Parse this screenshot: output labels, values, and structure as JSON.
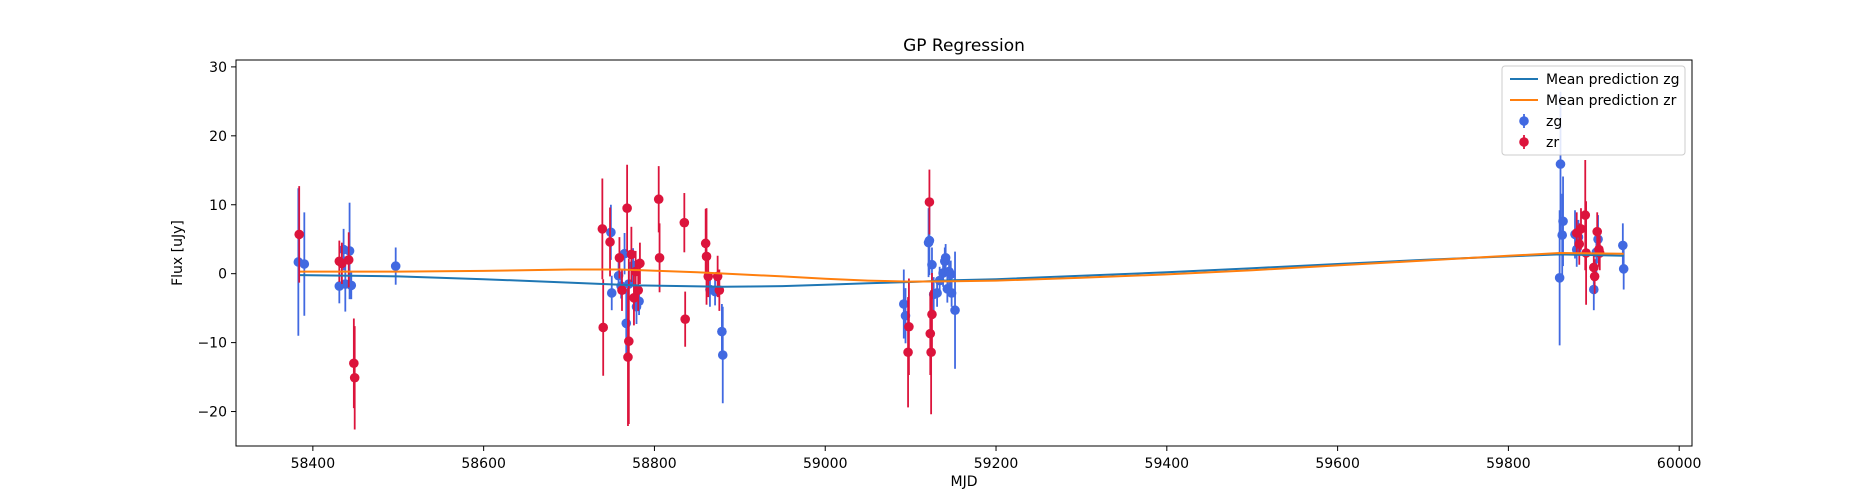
{
  "chart_data": {
    "type": "scatter",
    "title": "GP Regression",
    "xlabel": "MJD",
    "ylabel": "Flux [uJy]",
    "xlim": [
      58310,
      60015
    ],
    "ylim": [
      -25,
      31
    ],
    "x_ticks": [
      58400,
      58600,
      58800,
      59000,
      59200,
      59400,
      59600,
      59800,
      60000
    ],
    "y_ticks": [
      -20,
      -10,
      0,
      10,
      20,
      30
    ],
    "grid": false,
    "legend_position": "top-right",
    "lines": [
      {
        "name": "Mean prediction zg",
        "color": "#1f77b4",
        "x": [
          58385,
          58500,
          58600,
          58700,
          58780,
          58880,
          58950,
          59000,
          59050,
          59100,
          59150,
          59200,
          59300,
          59400,
          59500,
          59600,
          59700,
          59800,
          59860,
          59935
        ],
        "y": [
          -0.2,
          -0.4,
          -0.8,
          -1.3,
          -1.7,
          -1.9,
          -1.8,
          -1.6,
          -1.4,
          -1.2,
          -0.95,
          -0.8,
          -0.3,
          0.2,
          0.8,
          1.4,
          2.0,
          2.5,
          2.8,
          2.6
        ]
      },
      {
        "name": "Mean prediction zr",
        "color": "#ff7f0e",
        "x": [
          58385,
          58500,
          58600,
          58700,
          58760,
          58850,
          58950,
          59000,
          59050,
          59100,
          59150,
          59200,
          59300,
          59400,
          59500,
          59600,
          59700,
          59800,
          59860,
          59935
        ],
        "y": [
          0.3,
          0.3,
          0.4,
          0.6,
          0.6,
          0.2,
          -0.4,
          -0.75,
          -1.0,
          -1.15,
          -1.1,
          -1.0,
          -0.6,
          -0.1,
          0.5,
          1.2,
          1.9,
          2.6,
          3.0,
          2.9
        ]
      }
    ],
    "series": [
      {
        "name": "zg",
        "color": "#4169e1",
        "points": [
          {
            "x": 58383,
            "y": 1.7,
            "err": 10.7
          },
          {
            "x": 58390,
            "y": 1.4,
            "err": 7.5
          },
          {
            "x": 58431,
            "y": -1.8,
            "err": 2.5
          },
          {
            "x": 58436,
            "y": 3.5,
            "err": 3.0
          },
          {
            "x": 58438,
            "y": -1.5,
            "err": 4.0
          },
          {
            "x": 58443,
            "y": 3.3,
            "err": 7.0
          },
          {
            "x": 58445,
            "y": -1.7,
            "err": 2.0
          },
          {
            "x": 58497,
            "y": 1.1,
            "err": 2.7
          },
          {
            "x": 58749,
            "y": 6.0,
            "err": 4.0
          },
          {
            "x": 58750,
            "y": -2.8,
            "err": 2.5
          },
          {
            "x": 58758,
            "y": -0.3,
            "err": 2.0
          },
          {
            "x": 58761,
            "y": -1.8,
            "err": 1.8
          },
          {
            "x": 58765,
            "y": 2.9,
            "err": 3.0
          },
          {
            "x": 58767,
            "y": -7.2,
            "err": 5.0
          },
          {
            "x": 58770,
            "y": -1.5,
            "err": 2.0
          },
          {
            "x": 58775,
            "y": 1.2,
            "err": 2.5
          },
          {
            "x": 58779,
            "y": -4.8,
            "err": 2.5
          },
          {
            "x": 58782,
            "y": -4.0,
            "err": 2.0
          },
          {
            "x": 58865,
            "y": -2.3,
            "err": 2.5
          },
          {
            "x": 58871,
            "y": -2.6,
            "err": 2.0
          },
          {
            "x": 58879,
            "y": -8.4,
            "err": 4.0
          },
          {
            "x": 58880,
            "y": -11.8,
            "err": 7.0
          },
          {
            "x": 59092,
            "y": -4.4,
            "err": 5.0
          },
          {
            "x": 59094,
            "y": -6.1,
            "err": 4.0
          },
          {
            "x": 59121,
            "y": 4.5,
            "err": 5.0
          },
          {
            "x": 59122,
            "y": 4.8,
            "err": 5.0
          },
          {
            "x": 59125,
            "y": 1.3,
            "err": 2.5
          },
          {
            "x": 59127,
            "y": -3.0,
            "err": 2.5
          },
          {
            "x": 59131,
            "y": -2.8,
            "err": 2.0
          },
          {
            "x": 59134,
            "y": -1.0,
            "err": 2.0
          },
          {
            "x": 59138,
            "y": 0.1,
            "err": 2.0
          },
          {
            "x": 59140,
            "y": 1.8,
            "err": 2.0
          },
          {
            "x": 59141,
            "y": 2.3,
            "err": 2.0
          },
          {
            "x": 59143,
            "y": -2.2,
            "err": 2.0
          },
          {
            "x": 59145,
            "y": 0.3,
            "err": 2.0
          },
          {
            "x": 59147,
            "y": -0.1,
            "err": 2.0
          },
          {
            "x": 59148,
            "y": -2.8,
            "err": 2.0
          },
          {
            "x": 59152,
            "y": -5.3,
            "err": 8.5
          },
          {
            "x": 59860,
            "y": -0.6,
            "err": 9.8
          },
          {
            "x": 59861,
            "y": 15.9,
            "err": 10.5
          },
          {
            "x": 59863,
            "y": 5.6,
            "err": 6.0
          },
          {
            "x": 59864,
            "y": 7.6,
            "err": 6.5
          },
          {
            "x": 59878,
            "y": 5.7,
            "err": 3.5
          },
          {
            "x": 59880,
            "y": 3.5,
            "err": 2.5
          },
          {
            "x": 59882,
            "y": 5.3,
            "err": 2.5
          },
          {
            "x": 59900,
            "y": -2.3,
            "err": 3.0
          },
          {
            "x": 59903,
            "y": 3.1,
            "err": 3.0
          },
          {
            "x": 59905,
            "y": 5.0,
            "err": 3.5
          },
          {
            "x": 59934,
            "y": 4.1,
            "err": 3.2
          },
          {
            "x": 59935,
            "y": 0.7,
            "err": 3.0
          }
        ]
      },
      {
        "name": "zr",
        "color": "#dc143c",
        "points": [
          {
            "x": 58384,
            "y": 5.7,
            "err": 7.0
          },
          {
            "x": 58431,
            "y": 1.8,
            "err": 3.0
          },
          {
            "x": 58434,
            "y": 1.5,
            "err": 3.0
          },
          {
            "x": 58442,
            "y": 2.0,
            "err": 4.0
          },
          {
            "x": 58448,
            "y": -13.0,
            "err": 6.5
          },
          {
            "x": 58449,
            "y": -15.1,
            "err": 7.5
          },
          {
            "x": 58739,
            "y": 6.5,
            "err": 7.3
          },
          {
            "x": 58740,
            "y": -7.8,
            "err": 7.0
          },
          {
            "x": 58748,
            "y": 4.6,
            "err": 5.0
          },
          {
            "x": 58759,
            "y": 2.3,
            "err": 3.0
          },
          {
            "x": 58762,
            "y": -2.4,
            "err": 3.0
          },
          {
            "x": 58768,
            "y": 9.5,
            "err": 6.3
          },
          {
            "x": 58769,
            "y": -12.1,
            "err": 10.0
          },
          {
            "x": 58770,
            "y": -9.8,
            "err": 12.0
          },
          {
            "x": 58773,
            "y": 2.8,
            "err": 4.0
          },
          {
            "x": 58776,
            "y": -3.5,
            "err": 4.0
          },
          {
            "x": 58778,
            "y": 0.3,
            "err": 3.0
          },
          {
            "x": 58781,
            "y": -2.4,
            "err": 3.0
          },
          {
            "x": 58783,
            "y": 1.5,
            "err": 3.0
          },
          {
            "x": 58805,
            "y": 10.8,
            "err": 4.8
          },
          {
            "x": 58806,
            "y": 2.3,
            "err": 5.0
          },
          {
            "x": 58835,
            "y": 7.4,
            "err": 4.3
          },
          {
            "x": 58836,
            "y": -6.6,
            "err": 4.0
          },
          {
            "x": 58860,
            "y": 4.4,
            "err": 5.0
          },
          {
            "x": 58861,
            "y": 2.5,
            "err": 7.0
          },
          {
            "x": 58863,
            "y": -0.4,
            "err": 3.0
          },
          {
            "x": 58874,
            "y": -0.4,
            "err": 3.0
          },
          {
            "x": 58876,
            "y": -2.4,
            "err": 3.0
          },
          {
            "x": 59097,
            "y": -11.4,
            "err": 8.0
          },
          {
            "x": 59098,
            "y": -7.7,
            "err": 7.0
          },
          {
            "x": 59122,
            "y": 10.4,
            "err": 4.7
          },
          {
            "x": 59123,
            "y": -8.7,
            "err": 6.0
          },
          {
            "x": 59124,
            "y": -11.4,
            "err": 9.0
          },
          {
            "x": 59125,
            "y": -5.9,
            "err": 6.0
          },
          {
            "x": 59880,
            "y": 5.9,
            "err": 3.0
          },
          {
            "x": 59883,
            "y": 4.3,
            "err": 3.0
          },
          {
            "x": 59885,
            "y": 6.5,
            "err": 3.0
          },
          {
            "x": 59890,
            "y": 8.5,
            "err": 8.0
          },
          {
            "x": 59891,
            "y": 3.0,
            "err": 7.5
          },
          {
            "x": 59900,
            "y": 0.9,
            "err": 2.0
          },
          {
            "x": 59901,
            "y": -0.4,
            "err": 2.5
          },
          {
            "x": 59904,
            "y": 6.1,
            "err": 2.8
          },
          {
            "x": 59906,
            "y": 3.5,
            "err": 2.5
          },
          {
            "x": 59907,
            "y": 3.0,
            "err": 2.5
          }
        ]
      }
    ]
  }
}
